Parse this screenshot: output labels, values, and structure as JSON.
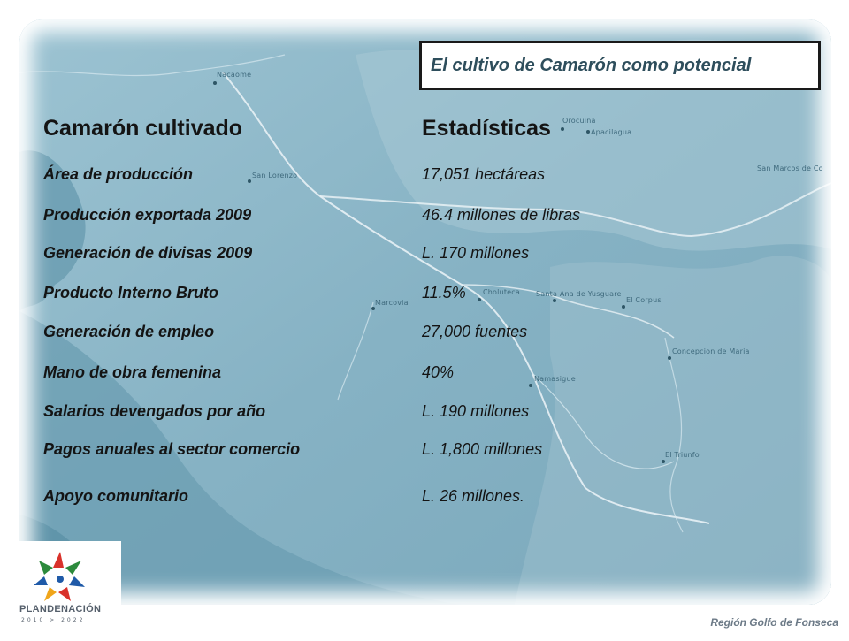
{
  "title": "El cultivo de Camarón como potencial",
  "headers": {
    "left": "Camarón cultivado",
    "right": "Estadísticas"
  },
  "rows": [
    {
      "label": "Área de producción",
      "value": "17,051 hectáreas"
    },
    {
      "label": "Producción exportada 2009",
      "value": "46.4 millones de libras"
    },
    {
      "label": "Generación de divisas 2009",
      "value": "L. 170 millones"
    },
    {
      "label": "Producto Interno Bruto",
      "value": "11.5%"
    },
    {
      "label": "Generación de empleo",
      "value": "27,000 fuentes"
    },
    {
      "label": "Mano de obra femenina",
      "value": "40%"
    },
    {
      "label": "Salarios devengados por año",
      "value": "L. 190 millones"
    },
    {
      "label": "Pagos anuales al sector comercio",
      "value": "L. 1,800 millones"
    },
    {
      "label": "Apoyo comunitario",
      "value": "L. 26 millones."
    }
  ],
  "map_towns": {
    "nacaome": "Nacaome",
    "orocuina": "Orocuina",
    "apacilagua": "Apacilagua",
    "san_lorenzo": "San Lorenzo",
    "san_marcos": "San Marcos de Co",
    "marcovia": "Marcovia",
    "choluteca": "Choluteca",
    "santa_ana": "Santa Ana de Yusguare",
    "el_corpus": "El Corpus",
    "concepcion": "Concepcion de Maria",
    "namasigue": "Namasigue",
    "el_triunfo": "El Triunfo"
  },
  "logo": {
    "name": "PLANDENACIÓN",
    "years": "2010 > 2022"
  },
  "footer": "Región Golfo de Fonseca",
  "colors": {
    "map": "#8fb8c8",
    "water": "#5e93a8",
    "title_text": "#2e4e5c"
  }
}
